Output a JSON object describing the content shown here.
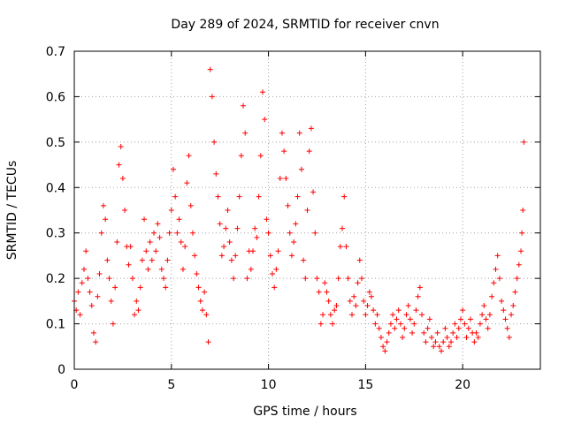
{
  "chart_data": {
    "type": "scatter",
    "title": "Day 289 of 2024, SRMTID for receiver cnvn",
    "xlabel": "GPS time / hours",
    "ylabel": "SRMTID / TECUs",
    "xlim": [
      0,
      24
    ],
    "ylim": [
      0,
      0.7
    ],
    "xticks": [
      "0",
      "5",
      "10",
      "15",
      "20"
    ],
    "xtick_values": [
      0,
      5,
      10,
      15,
      20
    ],
    "yticks": [
      "0",
      "0.1",
      "0.2",
      "0.3",
      "0.4",
      "0.5",
      "0.6",
      "0.7"
    ],
    "ytick_values": [
      0,
      0.1,
      0.2,
      0.3,
      0.4,
      0.5,
      0.6,
      0.7
    ],
    "grid": true,
    "marker": "+",
    "color": "#ff0000",
    "series": [
      {
        "name": "SRMTID",
        "points": [
          [
            0.0,
            0.15
          ],
          [
            0.1,
            0.13
          ],
          [
            0.2,
            0.17
          ],
          [
            0.3,
            0.12
          ],
          [
            0.4,
            0.19
          ],
          [
            0.5,
            0.22
          ],
          [
            0.6,
            0.26
          ],
          [
            0.7,
            0.2
          ],
          [
            0.8,
            0.17
          ],
          [
            0.9,
            0.14
          ],
          [
            1.0,
            0.08
          ],
          [
            1.1,
            0.06
          ],
          [
            1.2,
            0.16
          ],
          [
            1.3,
            0.21
          ],
          [
            1.4,
            0.3
          ],
          [
            1.5,
            0.36
          ],
          [
            1.6,
            0.33
          ],
          [
            1.7,
            0.24
          ],
          [
            1.8,
            0.2
          ],
          [
            1.9,
            0.15
          ],
          [
            2.0,
            0.1
          ],
          [
            2.1,
            0.18
          ],
          [
            2.2,
            0.28
          ],
          [
            2.3,
            0.45
          ],
          [
            2.4,
            0.49
          ],
          [
            2.5,
            0.42
          ],
          [
            2.6,
            0.35
          ],
          [
            2.7,
            0.27
          ],
          [
            2.8,
            0.23
          ],
          [
            2.9,
            0.27
          ],
          [
            3.0,
            0.2
          ],
          [
            3.1,
            0.12
          ],
          [
            3.2,
            0.15
          ],
          [
            3.3,
            0.13
          ],
          [
            3.4,
            0.18
          ],
          [
            3.5,
            0.24
          ],
          [
            3.6,
            0.33
          ],
          [
            3.7,
            0.26
          ],
          [
            3.8,
            0.22
          ],
          [
            3.9,
            0.28
          ],
          [
            4.0,
            0.24
          ],
          [
            4.1,
            0.3
          ],
          [
            4.2,
            0.26
          ],
          [
            4.3,
            0.32
          ],
          [
            4.4,
            0.29
          ],
          [
            4.5,
            0.22
          ],
          [
            4.6,
            0.2
          ],
          [
            4.7,
            0.18
          ],
          [
            4.8,
            0.24
          ],
          [
            4.9,
            0.3
          ],
          [
            5.0,
            0.35
          ],
          [
            5.1,
            0.44
          ],
          [
            5.2,
            0.38
          ],
          [
            5.3,
            0.3
          ],
          [
            5.4,
            0.33
          ],
          [
            5.5,
            0.28
          ],
          [
            5.6,
            0.22
          ],
          [
            5.7,
            0.27
          ],
          [
            5.8,
            0.41
          ],
          [
            5.9,
            0.47
          ],
          [
            6.0,
            0.36
          ],
          [
            6.1,
            0.3
          ],
          [
            6.2,
            0.25
          ],
          [
            6.3,
            0.21
          ],
          [
            6.4,
            0.18
          ],
          [
            6.5,
            0.15
          ],
          [
            6.6,
            0.13
          ],
          [
            6.7,
            0.17
          ],
          [
            6.8,
            0.12
          ],
          [
            6.9,
            0.06
          ],
          [
            7.0,
            0.66
          ],
          [
            7.1,
            0.6
          ],
          [
            7.2,
            0.5
          ],
          [
            7.3,
            0.43
          ],
          [
            7.4,
            0.38
          ],
          [
            7.5,
            0.32
          ],
          [
            7.6,
            0.25
          ],
          [
            7.7,
            0.27
          ],
          [
            7.8,
            0.31
          ],
          [
            7.9,
            0.35
          ],
          [
            8.0,
            0.28
          ],
          [
            8.1,
            0.24
          ],
          [
            8.2,
            0.2
          ],
          [
            8.3,
            0.25
          ],
          [
            8.4,
            0.31
          ],
          [
            8.5,
            0.38
          ],
          [
            8.6,
            0.47
          ],
          [
            8.7,
            0.58
          ],
          [
            8.8,
            0.52
          ],
          [
            8.9,
            0.2
          ],
          [
            9.0,
            0.26
          ],
          [
            9.1,
            0.22
          ],
          [
            9.2,
            0.26
          ],
          [
            9.3,
            0.31
          ],
          [
            9.4,
            0.29
          ],
          [
            9.5,
            0.38
          ],
          [
            9.6,
            0.47
          ],
          [
            9.7,
            0.61
          ],
          [
            9.8,
            0.55
          ],
          [
            9.9,
            0.33
          ],
          [
            10.0,
            0.3
          ],
          [
            10.1,
            0.25
          ],
          [
            10.2,
            0.21
          ],
          [
            10.3,
            0.18
          ],
          [
            10.4,
            0.22
          ],
          [
            10.5,
            0.26
          ],
          [
            10.6,
            0.42
          ],
          [
            10.7,
            0.52
          ],
          [
            10.8,
            0.48
          ],
          [
            10.9,
            0.42
          ],
          [
            11.0,
            0.36
          ],
          [
            11.1,
            0.3
          ],
          [
            11.2,
            0.25
          ],
          [
            11.3,
            0.28
          ],
          [
            11.4,
            0.32
          ],
          [
            11.5,
            0.38
          ],
          [
            11.6,
            0.52
          ],
          [
            11.7,
            0.44
          ],
          [
            11.8,
            0.24
          ],
          [
            11.9,
            0.2
          ],
          [
            12.0,
            0.35
          ],
          [
            12.1,
            0.48
          ],
          [
            12.2,
            0.53
          ],
          [
            12.3,
            0.39
          ],
          [
            12.4,
            0.3
          ],
          [
            12.5,
            0.2
          ],
          [
            12.6,
            0.17
          ],
          [
            12.7,
            0.1
          ],
          [
            12.8,
            0.12
          ],
          [
            12.9,
            0.19
          ],
          [
            13.0,
            0.17
          ],
          [
            13.1,
            0.15
          ],
          [
            13.2,
            0.12
          ],
          [
            13.3,
            0.1
          ],
          [
            13.4,
            0.13
          ],
          [
            13.5,
            0.14
          ],
          [
            13.6,
            0.2
          ],
          [
            13.7,
            0.27
          ],
          [
            13.8,
            0.31
          ],
          [
            13.9,
            0.38
          ],
          [
            14.0,
            0.27
          ],
          [
            14.1,
            0.2
          ],
          [
            14.2,
            0.15
          ],
          [
            14.3,
            0.12
          ],
          [
            14.4,
            0.16
          ],
          [
            14.5,
            0.14
          ],
          [
            14.6,
            0.19
          ],
          [
            14.7,
            0.24
          ],
          [
            14.8,
            0.2
          ],
          [
            14.9,
            0.15
          ],
          [
            15.0,
            0.12
          ],
          [
            15.1,
            0.14
          ],
          [
            15.2,
            0.17
          ],
          [
            15.3,
            0.16
          ],
          [
            15.4,
            0.13
          ],
          [
            15.5,
            0.1
          ],
          [
            15.6,
            0.12
          ],
          [
            15.7,
            0.09
          ],
          [
            15.8,
            0.07
          ],
          [
            15.9,
            0.05
          ],
          [
            16.0,
            0.04
          ],
          [
            16.1,
            0.06
          ],
          [
            16.2,
            0.08
          ],
          [
            16.3,
            0.1
          ],
          [
            16.4,
            0.12
          ],
          [
            16.5,
            0.09
          ],
          [
            16.6,
            0.11
          ],
          [
            16.7,
            0.13
          ],
          [
            16.8,
            0.1
          ],
          [
            16.9,
            0.07
          ],
          [
            17.0,
            0.09
          ],
          [
            17.1,
            0.12
          ],
          [
            17.2,
            0.14
          ],
          [
            17.3,
            0.11
          ],
          [
            17.4,
            0.08
          ],
          [
            17.5,
            0.1
          ],
          [
            17.6,
            0.13
          ],
          [
            17.7,
            0.16
          ],
          [
            17.8,
            0.18
          ],
          [
            17.9,
            0.12
          ],
          [
            18.0,
            0.08
          ],
          [
            18.1,
            0.06
          ],
          [
            18.2,
            0.09
          ],
          [
            18.3,
            0.11
          ],
          [
            18.4,
            0.07
          ],
          [
            18.5,
            0.05
          ],
          [
            18.6,
            0.06
          ],
          [
            18.7,
            0.08
          ],
          [
            18.8,
            0.05
          ],
          [
            18.9,
            0.04
          ],
          [
            19.0,
            0.06
          ],
          [
            19.1,
            0.09
          ],
          [
            19.2,
            0.07
          ],
          [
            19.3,
            0.05
          ],
          [
            19.4,
            0.06
          ],
          [
            19.5,
            0.08
          ],
          [
            19.6,
            0.1
          ],
          [
            19.7,
            0.07
          ],
          [
            19.8,
            0.09
          ],
          [
            19.9,
            0.11
          ],
          [
            20.0,
            0.13
          ],
          [
            20.1,
            0.1
          ],
          [
            20.2,
            0.07
          ],
          [
            20.3,
            0.09
          ],
          [
            20.4,
            0.11
          ],
          [
            20.5,
            0.08
          ],
          [
            20.6,
            0.06
          ],
          [
            20.7,
            0.08
          ],
          [
            20.8,
            0.07
          ],
          [
            20.9,
            0.1
          ],
          [
            21.0,
            0.12
          ],
          [
            21.1,
            0.14
          ],
          [
            21.2,
            0.11
          ],
          [
            21.3,
            0.09
          ],
          [
            21.4,
            0.12
          ],
          [
            21.5,
            0.16
          ],
          [
            21.6,
            0.19
          ],
          [
            21.7,
            0.22
          ],
          [
            21.8,
            0.25
          ],
          [
            21.9,
            0.2
          ],
          [
            22.0,
            0.15
          ],
          [
            22.1,
            0.13
          ],
          [
            22.2,
            0.11
          ],
          [
            22.3,
            0.09
          ],
          [
            22.4,
            0.07
          ],
          [
            22.5,
            0.12
          ],
          [
            22.6,
            0.14
          ],
          [
            22.7,
            0.17
          ],
          [
            22.8,
            0.2
          ],
          [
            22.9,
            0.23
          ],
          [
            23.0,
            0.26
          ],
          [
            23.05,
            0.3
          ],
          [
            23.1,
            0.35
          ],
          [
            23.15,
            0.5
          ]
        ]
      }
    ]
  }
}
